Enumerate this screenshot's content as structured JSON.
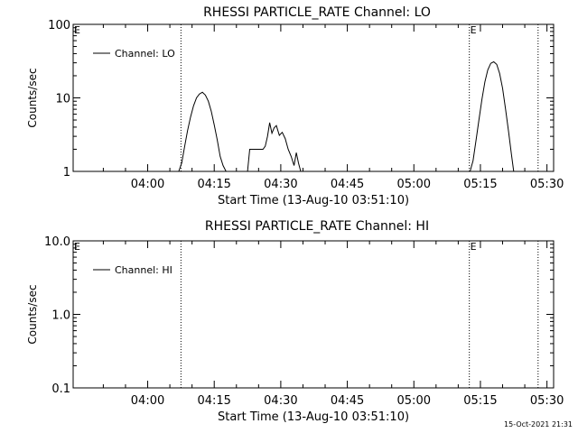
{
  "chart_data": [
    {
      "type": "line",
      "title": "RHESSI PARTICLE_RATE Channel: LO",
      "xlabel": "Start Time (13-Aug-10 03:51:10)",
      "ylabel": "Counts/sec",
      "yscale": "log",
      "ylim": [
        1,
        100
      ],
      "ytick_labels": [
        "1",
        "10",
        "100"
      ],
      "xlim_minutes": [
        223.2,
        331.5
      ],
      "xtick_labels": [
        "04:00",
        "04:15",
        "04:30",
        "04:45",
        "05:00",
        "05:15",
        "05:30"
      ],
      "legend": "top-left",
      "series": [
        {
          "name": "Channel: LO",
          "x": [
            "04:07:00",
            "04:07:40",
            "04:08:20",
            "04:09:00",
            "04:09:40",
            "04:10:20",
            "04:11:00",
            "04:11:40",
            "04:12:20",
            "04:13:00",
            "04:13:40",
            "04:14:20",
            "04:15:00",
            "04:15:40",
            "04:16:20",
            "04:17:00",
            "04:17:40",
            "04:18:00",
            "04:22:30",
            "04:23:00",
            "04:26:00",
            "04:26:30",
            "04:27:00",
            "04:27:30",
            "04:28:00",
            "04:28:30",
            "04:29:00",
            "04:29:40",
            "04:30:20",
            "04:31:00",
            "04:31:40",
            "04:32:20",
            "04:33:00",
            "04:33:30",
            "04:34:00",
            "04:34:30",
            "04:35:00",
            "05:12:40",
            "05:13:20",
            "05:14:00",
            "05:14:40",
            "05:15:20",
            "05:16:00",
            "05:16:40",
            "05:17:20",
            "05:18:00",
            "05:18:40",
            "05:19:20",
            "05:20:00",
            "05:20:40",
            "05:21:20",
            "05:22:00",
            "05:22:30"
          ],
          "values": [
            1.0,
            1.3,
            2.2,
            3.6,
            5.5,
            7.8,
            10.0,
            11.3,
            11.9,
            10.9,
            9.0,
            6.6,
            4.3,
            2.7,
            1.6,
            1.2,
            1.0,
            1.0,
            1.0,
            2.0,
            2.0,
            2.2,
            3.0,
            4.6,
            3.3,
            3.9,
            4.2,
            3.1,
            3.4,
            2.8,
            2.0,
            1.6,
            1.2,
            1.8,
            1.3,
            1.0,
            1.0,
            1.0,
            1.4,
            2.6,
            5.0,
            9.5,
            16.5,
            24.0,
            29.5,
            31.0,
            28.5,
            21.5,
            13.5,
            7.0,
            3.5,
            1.7,
            1.0
          ],
          "color": "#000000"
        }
      ]
    },
    {
      "type": "line",
      "title": "RHESSI PARTICLE_RATE Channel: HI",
      "xlabel": "Start Time (13-Aug-10 03:51:10)",
      "ylabel": "Counts/sec",
      "yscale": "log",
      "ylim": [
        0.1,
        10
      ],
      "ytick_labels": [
        "0.1",
        "1.0",
        "10.0"
      ],
      "xlim_minutes": [
        223.2,
        331.5
      ],
      "xtick_labels": [
        "04:00",
        "04:15",
        "04:30",
        "04:45",
        "05:00",
        "05:15",
        "05:30"
      ],
      "legend": "top-left",
      "series": [
        {
          "name": "Channel: HI",
          "x": [],
          "values": [],
          "color": "#000000"
        }
      ]
    }
  ],
  "markers": {
    "label": "E"
  },
  "footer": {
    "timestamp": "15-Oct-2021 21:31"
  }
}
